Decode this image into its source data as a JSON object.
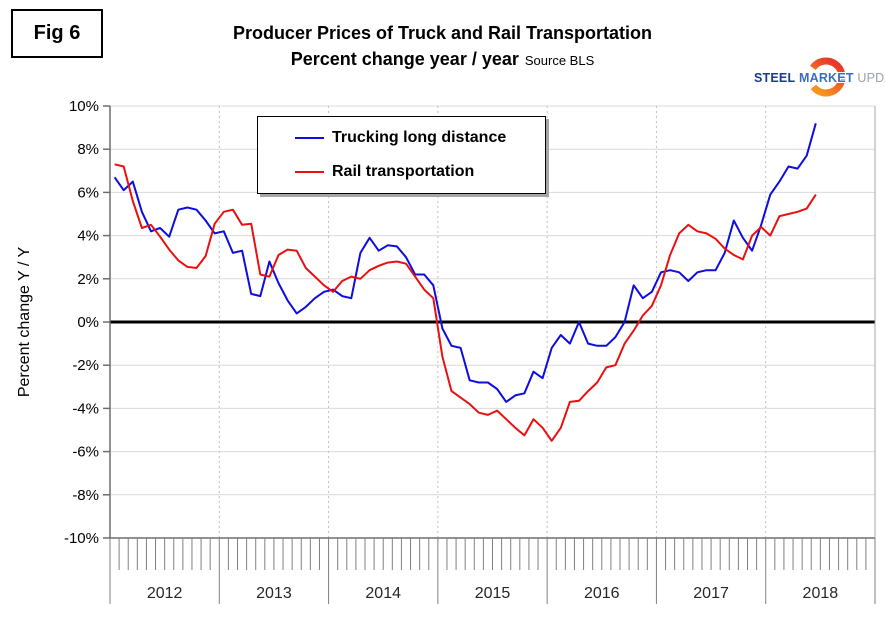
{
  "fig_label": "Fig 6",
  "title": "Producer Prices of Truck and Rail Transportation",
  "subtitle": "Percent change year / year",
  "source": "Source BLS",
  "logo": {
    "steel": "STEEL",
    "market": "MARKET",
    "update": "UPDATE",
    "steel_color": "#1a3c8f",
    "market_color": "#3e6dbf",
    "update_color": "#9aa2ac",
    "crescent_top_color": "#f7941e",
    "crescent_bottom_color": "#e8392b"
  },
  "chart_data": {
    "type": "line",
    "title": "Producer Prices of Truck and Rail Transportation",
    "subtitle": "Percent change year / year",
    "ylabel": "Percent change Y / Y",
    "xlabel": "",
    "ylim": [
      -10,
      10
    ],
    "ytick_step": 2,
    "ytick_labels": [
      "10%",
      "8%",
      "6%",
      "4%",
      "2%",
      "0%",
      "-2%",
      "-4%",
      "-6%",
      "-8%",
      "-10%"
    ],
    "grid": true,
    "zero_line": true,
    "legend_position": "top-center",
    "frequency": "monthly",
    "x_start": "2012-01",
    "x_end": "2018-06",
    "years": [
      "2012",
      "2013",
      "2014",
      "2015",
      "2016",
      "2017",
      "2018"
    ],
    "points_per_year": 12,
    "series": [
      {
        "name": "Trucking long distance",
        "color": "#0d0de0",
        "values": [
          6.7,
          6.1,
          6.5,
          5.1,
          4.2,
          4.35,
          3.95,
          5.2,
          5.3,
          5.2,
          4.7,
          4.1,
          4.2,
          3.2,
          3.3,
          1.3,
          1.2,
          2.8,
          1.8,
          1.0,
          0.4,
          0.7,
          1.1,
          1.4,
          1.5,
          1.2,
          1.1,
          3.2,
          3.9,
          3.3,
          3.55,
          3.5,
          3.0,
          2.2,
          2.2,
          1.7,
          -0.3,
          -1.1,
          -1.2,
          -2.7,
          -2.8,
          -2.8,
          -3.1,
          -3.7,
          -3.4,
          -3.3,
          -2.3,
          -2.6,
          -1.2,
          -0.6,
          -1.0,
          0.0,
          -1.0,
          -1.1,
          -1.1,
          -0.7,
          0.0,
          1.7,
          1.1,
          1.4,
          2.3,
          2.4,
          2.3,
          1.9,
          2.3,
          2.4,
          2.4,
          3.2,
          4.7,
          3.9,
          3.3,
          4.5,
          5.9,
          6.5,
          7.2,
          7.1,
          7.7,
          9.2
        ]
      },
      {
        "name": "Rail transportation",
        "color": "#ea1010",
        "values": [
          7.3,
          7.2,
          5.6,
          4.35,
          4.5,
          3.95,
          3.35,
          2.85,
          2.55,
          2.5,
          3.05,
          4.55,
          5.1,
          5.2,
          4.5,
          4.55,
          2.2,
          2.1,
          3.1,
          3.35,
          3.3,
          2.5,
          2.1,
          1.7,
          1.4,
          1.9,
          2.1,
          2.0,
          2.4,
          2.6,
          2.75,
          2.8,
          2.7,
          2.1,
          1.5,
          1.1,
          -1.6,
          -3.2,
          -3.5,
          -3.8,
          -4.2,
          -4.3,
          -4.1,
          -4.5,
          -4.9,
          -5.25,
          -4.5,
          -4.9,
          -5.5,
          -4.9,
          -3.7,
          -3.65,
          -3.2,
          -2.8,
          -2.1,
          -2.0,
          -1.0,
          -0.4,
          0.3,
          0.75,
          1.7,
          3.1,
          4.1,
          4.5,
          4.2,
          4.1,
          3.85,
          3.4,
          3.1,
          2.9,
          4.0,
          4.4,
          4.0,
          4.9,
          5.0,
          5.1,
          5.25,
          5.9
        ]
      }
    ],
    "colors": {
      "gridline": "#d9d9d9",
      "year_gridline": "#bfbfbf",
      "axis_line": "#6e6e6e",
      "tick": "#808080",
      "zero_line": "#000000",
      "year_label": "#262626",
      "ytick_label": "#000000"
    }
  }
}
